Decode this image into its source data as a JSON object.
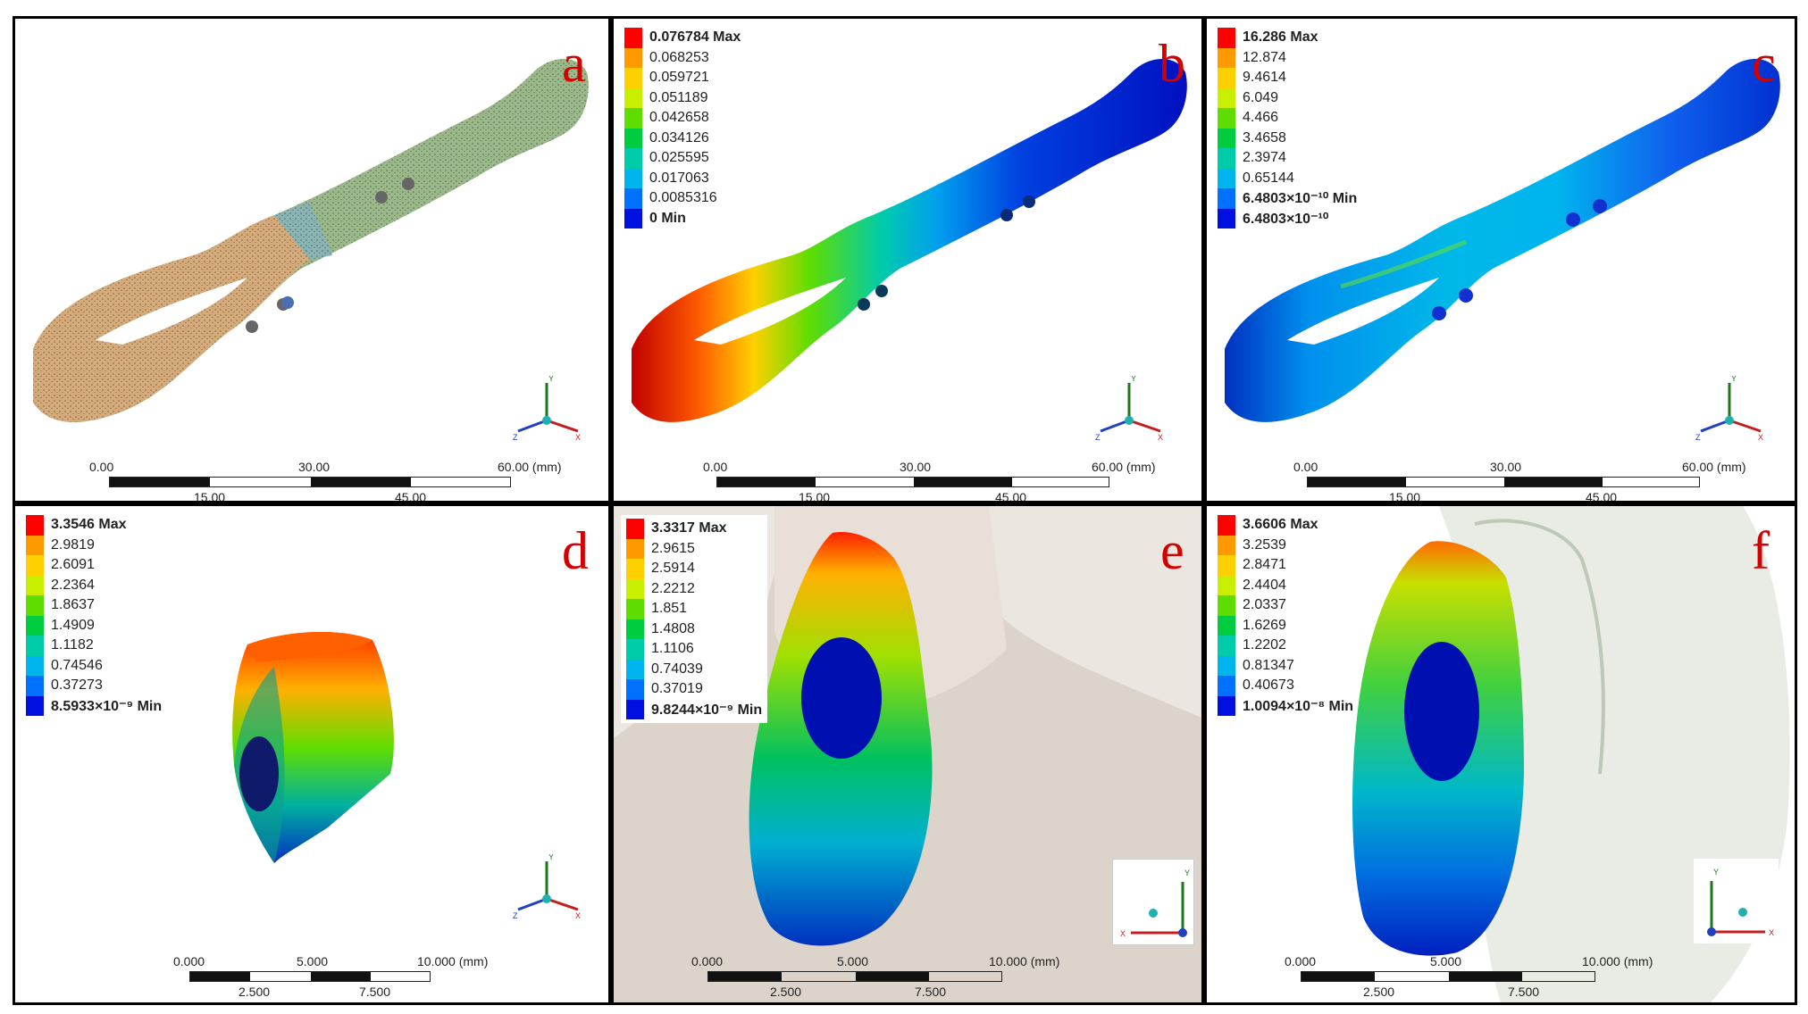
{
  "panels": [
    {
      "id": "a",
      "label": "a",
      "legend": [],
      "scale": {
        "top": [
          "0.00",
          "30.00",
          "60.00 (mm)"
        ],
        "bottom": [
          "15.00",
          "45.00"
        ]
      }
    },
    {
      "id": "b",
      "label": "b",
      "legend": [
        "0.076784 Max",
        "0.068253",
        "0.059721",
        "0.051189",
        "0.042658",
        "0.034126",
        "0.025595",
        "0.017063",
        "0.0085316",
        "0 Min"
      ],
      "scale": {
        "top": [
          "0.00",
          "30.00",
          "60.00 (mm)"
        ],
        "bottom": [
          "15.00",
          "45.00"
        ]
      }
    },
    {
      "id": "c",
      "label": "c",
      "legend": [
        "16.286 Max",
        "12.874",
        "9.4614",
        "6.049",
        "4.466",
        "3.4658",
        "2.3974",
        "0.65144",
        "6.4803×10⁻¹⁰ Min",
        "6.4803×10⁻¹⁰"
      ],
      "scale": {
        "top": [
          "0.00",
          "30.00",
          "60.00 (mm)"
        ],
        "bottom": [
          "15.00",
          "45.00"
        ]
      }
    },
    {
      "id": "d",
      "label": "d",
      "legend": [
        "3.3546 Max",
        "2.9819",
        "2.6091",
        "2.2364",
        "1.8637",
        "1.4909",
        "1.1182",
        "0.74546",
        "0.37273",
        "8.5933×10⁻⁹ Min"
      ],
      "scale": {
        "top": [
          "0.000",
          "5.000",
          "10.000 (mm)"
        ],
        "bottom": [
          "2.500",
          "7.500"
        ]
      }
    },
    {
      "id": "e",
      "label": "e",
      "legend": [
        "3.3317 Max",
        "2.9615",
        "2.5914",
        "2.2212",
        "1.851",
        "1.4808",
        "1.1106",
        "0.74039",
        "0.37019",
        "9.8244×10⁻⁹ Min"
      ],
      "scale": {
        "top": [
          "0.000",
          "5.000",
          "10.000 (mm)"
        ],
        "bottom": [
          "2.500",
          "7.500"
        ]
      }
    },
    {
      "id": "f",
      "label": "f",
      "legend": [
        "3.6606 Max",
        "3.2539",
        "2.8471",
        "2.4404",
        "2.0337",
        "1.6269",
        "1.2202",
        "0.81347",
        "0.40673",
        "1.0094×10⁻⁸ Min"
      ],
      "scale": {
        "top": [
          "0.000",
          "5.000",
          "10.000 (mm)"
        ],
        "bottom": [
          "2.500",
          "7.500"
        ]
      }
    }
  ],
  "axes": {
    "x": "X",
    "y": "Y",
    "z": "Z"
  },
  "colors": {
    "legend": [
      "#ff0000",
      "#ff9900",
      "#ffd000",
      "#c8ee00",
      "#60dd00",
      "#00cc40",
      "#00ccaa",
      "#00b4ee",
      "#0070ff",
      "#0010e0"
    ],
    "bone_distal": "#d6ab7c",
    "bone_proximal": "#9ab88a",
    "bone_mid": "#8ab3b3",
    "label": "#d40000"
  }
}
